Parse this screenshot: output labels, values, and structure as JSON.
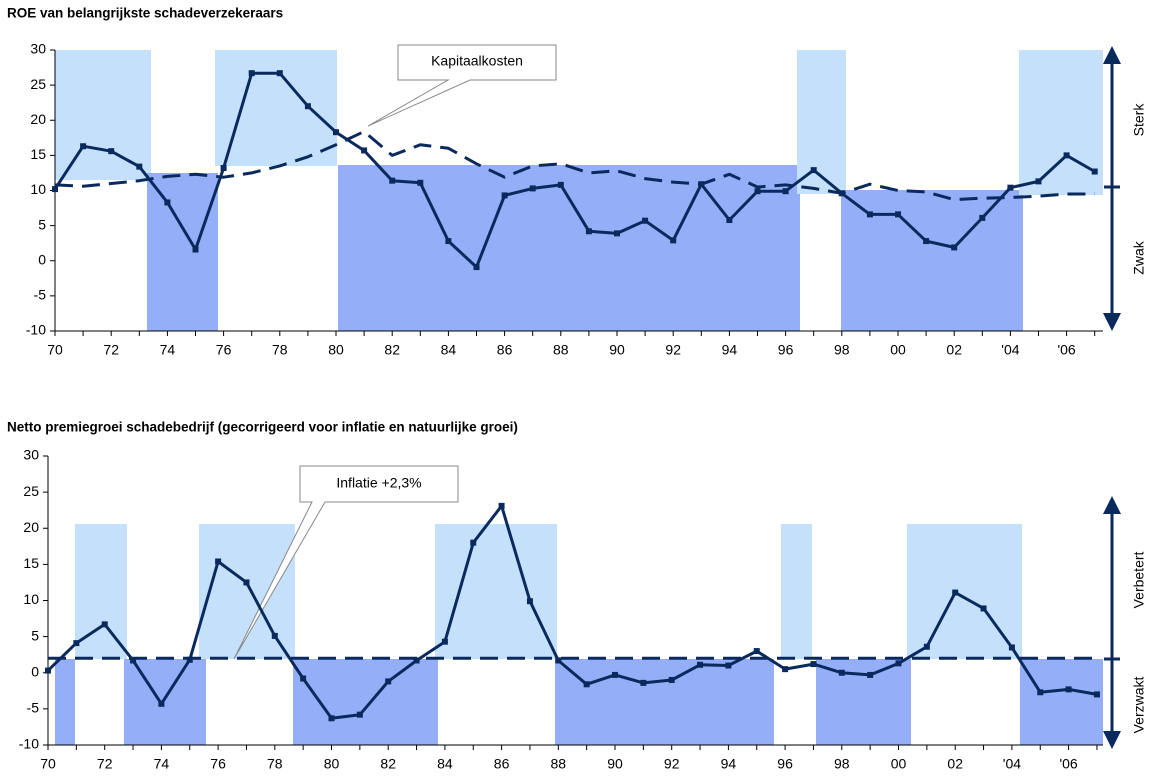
{
  "chart_data": [
    {
      "type": "line",
      "title": "ROE van belangrijkste schadeverzekeraars",
      "categories": [
        "70",
        null,
        "72",
        null,
        "74",
        null,
        "76",
        null,
        "78",
        null,
        "80",
        null,
        "82",
        null,
        "84",
        null,
        "86",
        null,
        "88",
        null,
        "90",
        null,
        "92",
        null,
        "94",
        null,
        "96",
        null,
        "98",
        null,
        "00",
        null,
        "02",
        null,
        "'04",
        null,
        "'06",
        null
      ],
      "series": [
        {
          "color": "#0a2a5e",
          "dash": false,
          "markers": true,
          "values": [
            10.2,
            16.3,
            15.6,
            13.4,
            8.3,
            1.6,
            13.2,
            26.7,
            26.7,
            22,
            18.3,
            15.7,
            11.4,
            11.1,
            2.8,
            -0.9,
            9.3,
            10.3,
            10.8,
            4.2,
            3.9,
            5.7,
            2.9,
            10.9,
            5.8,
            9.9,
            9.9,
            12.9,
            9.6,
            6.6,
            6.6,
            2.8,
            1.9,
            6.1,
            10.4,
            11.3,
            15,
            12.7
          ]
        },
        {
          "color": "#0a2a5e",
          "dash": true,
          "markers": false,
          "values": [
            10.8,
            10.6,
            11,
            11.4,
            12,
            12.3,
            11.9,
            12.5,
            13.5,
            14.8,
            16.5,
            18.4,
            15,
            16.5,
            16,
            13.8,
            11.9,
            13.5,
            13.8,
            12.5,
            12.8,
            11.7,
            11.2,
            10.9,
            12.3,
            10.5,
            10.8,
            10.3,
            9.6,
            10.9,
            10,
            9.8,
            8.7,
            8.9,
            9,
            9.2,
            9.5,
            9.5
          ]
        }
      ],
      "annotation": "Kapitaalkosten",
      "side_labels": [
        "Sterk",
        "Zwak"
      ],
      "ylim": [
        -10,
        30
      ],
      "yticks": [
        -10,
        -5,
        0,
        5,
        10,
        15,
        20,
        25,
        30
      ]
    },
    {
      "type": "line",
      "title": "Netto premiegroei schadebedrijf (gecorrigeerd voor inflatie en natuurlijke groei)",
      "categories": [
        "70",
        null,
        "72",
        null,
        "74",
        null,
        "76",
        null,
        "78",
        null,
        "80",
        null,
        "82",
        null,
        "84",
        null,
        "86",
        null,
        "88",
        null,
        "90",
        null,
        "92",
        null,
        "94",
        null,
        "96",
        null,
        "98",
        null,
        "00",
        null,
        "02",
        null,
        "'04",
        null,
        "'06",
        null
      ],
      "series": [
        {
          "color": "#0a2a5e",
          "dash": false,
          "markers": true,
          "values": [
            0.3,
            4.1,
            6.7,
            1.7,
            -4.3,
            1.8,
            15.4,
            12.5,
            5.1,
            -0.8,
            -6.3,
            -5.8,
            -1.2,
            1.7,
            4.3,
            18,
            23.1,
            9.9,
            1.7,
            -1.6,
            -0.3,
            -1.4,
            -1,
            1.1,
            1,
            3,
            0.5,
            1.2,
            0,
            -0.3,
            1.3,
            3.6,
            11.1,
            8.9,
            3.5,
            -2.7,
            -2.3,
            -3
          ]
        },
        {
          "color": "#0a2a5e",
          "dash": true,
          "markers": false,
          "values": [
            2,
            2,
            2,
            2,
            2,
            2,
            2,
            2,
            2,
            2,
            2,
            2,
            2,
            2,
            2,
            2,
            2,
            2,
            2,
            2,
            2,
            2,
            2,
            2,
            2,
            2,
            2,
            2,
            2,
            2,
            2,
            2,
            2,
            2,
            2,
            2,
            2,
            2
          ]
        }
      ],
      "annotation": "Inflatie +2,3%",
      "side_labels": [
        "Verbetert",
        "Verzwakt"
      ],
      "ylim": [
        -10,
        30
      ],
      "yticks": [
        -10,
        -5,
        0,
        5,
        10,
        15,
        20,
        25,
        30
      ]
    }
  ]
}
